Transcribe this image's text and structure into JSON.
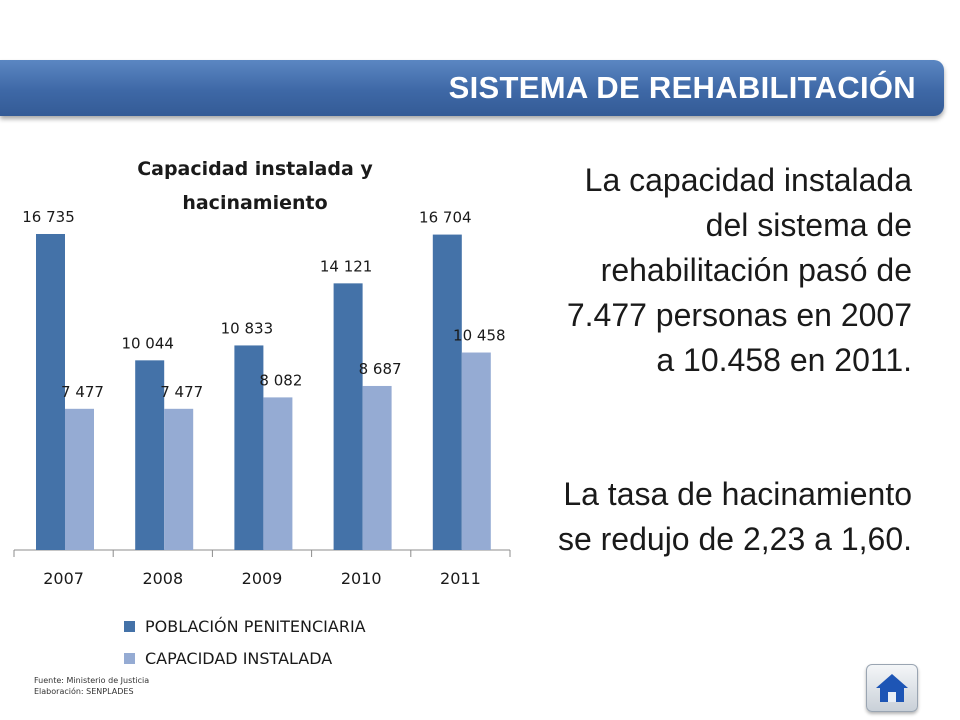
{
  "header": {
    "title": "SISTEMA DE REHABILITACIÓN"
  },
  "chart_data": {
    "type": "bar",
    "title_lines": [
      "Capacidad instalada y",
      "hacinamiento"
    ],
    "categories": [
      "2007",
      "2008",
      "2009",
      "2010",
      "2011"
    ],
    "series": [
      {
        "name": "POBLACIÓN PENITENCIARIA",
        "values": [
          16735,
          10044,
          10833,
          14121,
          16704
        ],
        "labels": [
          "16 735",
          "10 044",
          "10 833",
          "14 121",
          "16 704"
        ],
        "color": "#4472a8"
      },
      {
        "name": "CAPACIDAD INSTALADA",
        "values": [
          7477,
          7477,
          8082,
          8687,
          10458
        ],
        "labels": [
          "7 477",
          "7 477",
          "8 082",
          "8 687",
          "10 458"
        ],
        "color": "#95abd3"
      }
    ],
    "ylim": [
      0,
      18000
    ],
    "grid": false,
    "legend_position": "bottom"
  },
  "text": {
    "paragraph1": "La capacidad instalada del sistema de rehabilitación pasó de 7.477 personas en 2007 a 10.458 en 2011.",
    "paragraph2": "La tasa de hacinamiento se redujo de 2,23 a 1,60."
  },
  "footnote": {
    "source": "Fuente: Ministerio de Justicia",
    "prepared": "Elaboración: SENPLADES"
  },
  "nav": {
    "home_icon": "home-icon"
  }
}
